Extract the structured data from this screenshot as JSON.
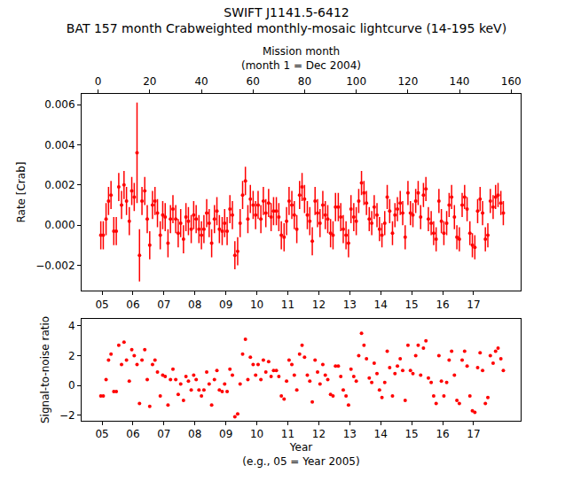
{
  "chart_data": [
    {
      "type": "scatter",
      "title": [
        "SWIFT J1141.5-6412",
        "BAT 157 month Crabweighted monthly-mosaic lightcurve (14-195 keV)"
      ],
      "x2label": [
        "Mission month",
        "(month 1 = Dec 2004)"
      ],
      "ylabel": [
        "Rate [Crab]"
      ],
      "color": "#ff0000",
      "marker": "circle",
      "x": [
        2004.96,
        2005.04,
        2005.13,
        2005.21,
        2005.29,
        2005.38,
        2005.46,
        2005.54,
        2005.63,
        2005.71,
        2005.79,
        2005.88,
        2005.96,
        2006.04,
        2006.13,
        2006.21,
        2006.29,
        2006.38,
        2006.46,
        2006.54,
        2006.63,
        2006.71,
        2006.79,
        2006.88,
        2006.96,
        2007.04,
        2007.13,
        2007.21,
        2007.29,
        2007.38,
        2007.46,
        2007.54,
        2007.63,
        2007.71,
        2007.79,
        2007.88,
        2007.96,
        2008.04,
        2008.13,
        2008.21,
        2008.29,
        2008.38,
        2008.46,
        2008.54,
        2008.63,
        2008.71,
        2008.79,
        2008.88,
        2008.96,
        2009.04,
        2009.13,
        2009.21,
        2009.29,
        2009.38,
        2009.46,
        2009.54,
        2009.63,
        2009.71,
        2009.79,
        2009.88,
        2009.96,
        2010.04,
        2010.13,
        2010.21,
        2010.29,
        2010.38,
        2010.46,
        2010.54,
        2010.63,
        2010.71,
        2010.79,
        2010.88,
        2010.96,
        2011.04,
        2011.13,
        2011.21,
        2011.29,
        2011.38,
        2011.46,
        2011.54,
        2011.63,
        2011.71,
        2011.79,
        2011.88,
        2011.96,
        2012.04,
        2012.13,
        2012.21,
        2012.29,
        2012.38,
        2012.46,
        2012.54,
        2012.63,
        2012.71,
        2012.79,
        2012.88,
        2012.96,
        2013.04,
        2013.13,
        2013.21,
        2013.29,
        2013.38,
        2013.46,
        2013.54,
        2013.63,
        2013.71,
        2013.79,
        2013.88,
        2013.96,
        2014.04,
        2014.13,
        2014.21,
        2014.29,
        2014.38,
        2014.46,
        2014.54,
        2014.63,
        2014.71,
        2014.79,
        2014.88,
        2014.96,
        2015.04,
        2015.13,
        2015.21,
        2015.29,
        2015.38,
        2015.46,
        2015.54,
        2015.63,
        2015.71,
        2015.79,
        2015.88,
        2015.96,
        2016.04,
        2016.13,
        2016.21,
        2016.29,
        2016.38,
        2016.46,
        2016.54,
        2016.63,
        2016.71,
        2016.79,
        2016.88,
        2016.96,
        2017.04,
        2017.13,
        2017.21,
        2017.29,
        2017.38,
        2017.46,
        2017.54,
        2017.63,
        2017.71,
        2017.79,
        2017.88,
        2017.96
      ],
      "values": [
        -0.0005,
        -0.0005,
        0.0003,
        0.0012,
        0.0015,
        -0.0003,
        -0.0003,
        0.0019,
        0.001,
        0.002,
        0.0012,
        0.0002,
        0.0017,
        0.0014,
        0.0036,
        -0.0015,
        0.0012,
        0.0017,
        0.0003,
        -0.001,
        0.001,
        0.0012,
        0.0006,
        -0.0005,
        0.0005,
        0.0004,
        -0.0009,
        0.0003,
        0.0008,
        0.0003,
        -0.0004,
        0.0001,
        -0.0007,
        0.0004,
        0.0002,
        -0.0002,
        0.0005,
        0.0003,
        -0.0002,
        -0.0005,
        -0.0002,
        0.0006,
        0.0001,
        -0.0009,
        0.0003,
        0.0007,
        -0.0002,
        -0.0003,
        0.0001,
        -0.0003,
        0.0008,
        0.0005,
        -0.0015,
        -0.0013,
        0.0001,
        0.0015,
        0.0022,
        0.0003,
        0.0013,
        0.001,
        0.0005,
        0.001,
        0.0003,
        0.0012,
        0.0006,
        0.0011,
        0.0004,
        0.0007,
        0.0007,
        0.0004,
        -0.0005,
        -0.0006,
        0.0002,
        0.0012,
        0.001,
        0.0005,
        -0.0002,
        0.0015,
        0.0019,
        0.0013,
        0.0005,
        0.0002,
        -0.0008,
        0.0012,
        0.0006,
        0.0001,
        0.001,
        0.0005,
        0.0003,
        -0.0004,
        -0.0005,
        0.0009,
        0.0009,
        0.0004,
        -0.0002,
        -0.0005,
        -0.0009,
        0.0008,
        0.0004,
        0.0002,
        0.0012,
        0.0021,
        0.0016,
        0.0011,
        0.0003,
        0.0001,
        0.0009,
        0.0005,
        -0.0002,
        -0.0005,
        0.0001,
        0.0014,
        0.0007,
        -0.0004,
        0.0005,
        0.0008,
        0.0011,
        0.0006,
        -0.0006,
        0.0016,
        0.0006,
        0.0005,
        0.0012,
        0.0016,
        0.0004,
        0.0015,
        0.0018,
        0.0003,
        0.0001,
        -0.0004,
        -0.0007,
        0.0012,
        0.0002,
        -0.0004,
        0.0001,
        0.001,
        0.0014,
        0.0004,
        -0.0006,
        -0.0007,
        0.001,
        0.0014,
        0.0008,
        -0.0004,
        -0.001,
        -0.0011,
        0.0007,
        0.0013,
        0.0006,
        -0.0007,
        -0.0005,
        0.0012,
        0.0009,
        0.0014,
        0.0015,
        0.0011,
        0.0006
      ],
      "error": [
        0.0007,
        0.0007,
        0.0008,
        0.0007,
        0.0007,
        0.0007,
        0.0007,
        0.0007,
        0.0007,
        0.0007,
        0.0007,
        0.0007,
        0.0007,
        0.0007,
        0.0025,
        0.0013,
        0.0007,
        0.0007,
        0.0007,
        0.0007,
        0.0007,
        0.0007,
        0.0007,
        0.0007,
        0.0007,
        0.0007,
        0.0007,
        0.0007,
        0.0007,
        0.0007,
        0.0007,
        0.0007,
        0.0007,
        0.0007,
        0.0007,
        0.0007,
        0.0007,
        0.0007,
        0.0007,
        0.0007,
        0.0007,
        0.0007,
        0.0007,
        0.0007,
        0.0007,
        0.0007,
        0.0007,
        0.0007,
        0.0007,
        0.0007,
        0.0007,
        0.0007,
        0.0007,
        0.0007,
        0.0007,
        0.0007,
        0.0007,
        0.0007,
        0.0007,
        0.0007,
        0.0007,
        0.0007,
        0.0007,
        0.0007,
        0.0007,
        0.0007,
        0.0007,
        0.0007,
        0.0007,
        0.0007,
        0.0007,
        0.0007,
        0.0007,
        0.0007,
        0.0007,
        0.0007,
        0.0007,
        0.0007,
        0.0007,
        0.0007,
        0.0007,
        0.0007,
        0.0007,
        0.0007,
        0.0007,
        0.0007,
        0.0007,
        0.0007,
        0.0007,
        0.0007,
        0.0007,
        0.0007,
        0.0007,
        0.0007,
        0.0007,
        0.0007,
        0.0007,
        0.0007,
        0.0007,
        0.0007,
        0.0006,
        0.0006,
        0.0006,
        0.0006,
        0.0006,
        0.0006,
        0.0006,
        0.0006,
        0.0006,
        0.0006,
        0.0006,
        0.0006,
        0.0006,
        0.0006,
        0.0006,
        0.0006,
        0.0006,
        0.0006,
        0.0006,
        0.0006,
        0.0006,
        0.0006,
        0.0006,
        0.0006,
        0.0006,
        0.0006,
        0.0006,
        0.0006,
        0.0006,
        0.0006,
        0.0006,
        0.0006,
        0.0006,
        0.0006,
        0.0006,
        0.0006,
        0.0006,
        0.0006,
        0.0006,
        0.0006,
        0.0006,
        0.0006,
        0.0006,
        0.0006,
        0.0006,
        0.0006,
        0.0006,
        0.0006,
        0.0006,
        0.0006,
        0.0006,
        0.0006,
        0.0006,
        0.0006,
        0.0006,
        0.0006,
        0.0006
      ],
      "xlim": [
        2004.34,
        2018.52
      ],
      "xticks": [
        {
          "value": 2005,
          "label": "05"
        },
        {
          "value": 2006,
          "label": "06"
        },
        {
          "value": 2007,
          "label": "07"
        },
        {
          "value": 2008,
          "label": "08"
        },
        {
          "value": 2009,
          "label": "09"
        },
        {
          "value": 2010,
          "label": "10"
        },
        {
          "value": 2011,
          "label": "11"
        },
        {
          "value": 2012,
          "label": "12"
        },
        {
          "value": 2013,
          "label": "13"
        },
        {
          "value": 2014,
          "label": "14"
        },
        {
          "value": 2015,
          "label": "15"
        },
        {
          "value": 2016,
          "label": "16"
        },
        {
          "value": 2017,
          "label": "17"
        }
      ],
      "x2lim": [
        -6.4,
        163.7
      ],
      "x2ticks": [
        0,
        20,
        40,
        60,
        80,
        100,
        120,
        140,
        160
      ],
      "ylim": [
        -0.00326,
        0.00653
      ],
      "yticks": [
        {
          "value": -0.002,
          "label": "−0.002"
        },
        {
          "value": 0,
          "label": "0.000"
        },
        {
          "value": 0.002,
          "label": "0.002"
        },
        {
          "value": 0.004,
          "label": "0.004"
        },
        {
          "value": 0.006,
          "label": "0.006"
        }
      ]
    },
    {
      "type": "scatter",
      "xlabel": [
        "Year",
        "(e.g., 05 = Year 2005)"
      ],
      "ylabel": [
        "Signal-to-noise ratio"
      ],
      "color": "#ff0000",
      "marker": "circle",
      "x": [
        2004.96,
        2005.04,
        2005.13,
        2005.21,
        2005.29,
        2005.38,
        2005.46,
        2005.54,
        2005.63,
        2005.71,
        2005.79,
        2005.88,
        2005.96,
        2006.04,
        2006.13,
        2006.21,
        2006.29,
        2006.38,
        2006.46,
        2006.54,
        2006.63,
        2006.71,
        2006.79,
        2006.88,
        2006.96,
        2007.04,
        2007.13,
        2007.21,
        2007.29,
        2007.38,
        2007.46,
        2007.54,
        2007.63,
        2007.71,
        2007.79,
        2007.88,
        2007.96,
        2008.04,
        2008.13,
        2008.21,
        2008.29,
        2008.38,
        2008.46,
        2008.54,
        2008.63,
        2008.71,
        2008.79,
        2008.88,
        2008.96,
        2009.04,
        2009.13,
        2009.21,
        2009.29,
        2009.38,
        2009.46,
        2009.54,
        2009.63,
        2009.71,
        2009.79,
        2009.88,
        2009.96,
        2010.04,
        2010.13,
        2010.21,
        2010.29,
        2010.38,
        2010.46,
        2010.54,
        2010.63,
        2010.71,
        2010.79,
        2010.88,
        2010.96,
        2011.04,
        2011.13,
        2011.21,
        2011.29,
        2011.38,
        2011.46,
        2011.54,
        2011.63,
        2011.71,
        2011.79,
        2011.88,
        2011.96,
        2012.04,
        2012.13,
        2012.21,
        2012.29,
        2012.38,
        2012.46,
        2012.54,
        2012.63,
        2012.71,
        2012.79,
        2012.88,
        2012.96,
        2013.04,
        2013.13,
        2013.21,
        2013.29,
        2013.38,
        2013.46,
        2013.54,
        2013.63,
        2013.71,
        2013.79,
        2013.88,
        2013.96,
        2014.04,
        2014.13,
        2014.21,
        2014.29,
        2014.38,
        2014.46,
        2014.54,
        2014.63,
        2014.71,
        2014.79,
        2014.88,
        2014.96,
        2015.04,
        2015.13,
        2015.21,
        2015.29,
        2015.38,
        2015.46,
        2015.54,
        2015.63,
        2015.71,
        2015.79,
        2015.88,
        2015.96,
        2016.04,
        2016.13,
        2016.21,
        2016.29,
        2016.38,
        2016.46,
        2016.54,
        2016.63,
        2016.71,
        2016.79,
        2016.88,
        2016.96,
        2017.04,
        2017.13,
        2017.21,
        2017.29,
        2017.38,
        2017.46,
        2017.54,
        2017.63,
        2017.71,
        2017.79,
        2017.88,
        2017.96
      ],
      "values": [
        -0.7,
        -0.7,
        0.4,
        1.7,
        2.1,
        -0.4,
        -0.4,
        2.7,
        1.4,
        2.9,
        1.7,
        0.3,
        2.4,
        2.0,
        1.4,
        -1.2,
        1.7,
        2.4,
        0.4,
        -1.4,
        1.4,
        1.7,
        0.9,
        -0.7,
        0.7,
        0.6,
        -1.3,
        0.4,
        1.1,
        0.4,
        -0.6,
        0.1,
        -1.0,
        0.6,
        0.3,
        -0.3,
        0.7,
        0.4,
        -0.3,
        -0.7,
        -0.3,
        0.9,
        0.1,
        -1.3,
        0.4,
        1.0,
        -0.3,
        -0.4,
        0.1,
        -0.4,
        1.1,
        0.7,
        -2.1,
        -1.9,
        0.1,
        2.1,
        3.1,
        0.4,
        1.9,
        1.4,
        0.7,
        1.4,
        0.4,
        1.7,
        0.9,
        1.6,
        0.6,
        1.0,
        1.0,
        0.6,
        -0.7,
        -0.9,
        0.3,
        1.7,
        1.4,
        0.7,
        -0.3,
        2.1,
        2.7,
        1.9,
        0.7,
        0.3,
        -1.1,
        1.7,
        0.9,
        0.1,
        1.4,
        0.7,
        0.4,
        -0.6,
        -0.7,
        1.3,
        1.3,
        0.6,
        -0.3,
        -0.7,
        -1.3,
        1.1,
        0.6,
        0.3,
        2.0,
        3.5,
        2.7,
        1.8,
        0.5,
        0.2,
        1.5,
        0.8,
        -0.3,
        -0.8,
        0.2,
        2.3,
        1.2,
        -0.7,
        0.8,
        1.3,
        1.8,
        1.0,
        -1.0,
        2.7,
        1.0,
        0.8,
        2.0,
        2.7,
        0.7,
        2.5,
        3.0,
        0.5,
        0.2,
        -0.7,
        -1.2,
        2.0,
        0.3,
        -0.7,
        0.2,
        1.7,
        2.3,
        0.7,
        -1.0,
        -1.2,
        1.7,
        2.3,
        1.3,
        -0.7,
        -1.7,
        -1.8,
        1.2,
        2.2,
        1.0,
        -1.2,
        -0.8,
        2.0,
        1.5,
        2.3,
        2.5,
        1.8,
        1.0
      ],
      "xlim": [
        2004.34,
        2018.52
      ],
      "xticks": [
        {
          "value": 2005,
          "label": "05"
        },
        {
          "value": 2006,
          "label": "06"
        },
        {
          "value": 2007,
          "label": "07"
        },
        {
          "value": 2008,
          "label": "08"
        },
        {
          "value": 2009,
          "label": "09"
        },
        {
          "value": 2010,
          "label": "10"
        },
        {
          "value": 2011,
          "label": "11"
        },
        {
          "value": 2012,
          "label": "12"
        },
        {
          "value": 2013,
          "label": "13"
        },
        {
          "value": 2014,
          "label": "14"
        },
        {
          "value": 2015,
          "label": "15"
        },
        {
          "value": 2016,
          "label": "16"
        },
        {
          "value": 2017,
          "label": "17"
        }
      ],
      "ylim": [
        -2.36,
        4.47
      ],
      "yticks": [
        {
          "value": -2,
          "label": "−2"
        },
        0,
        2,
        4
      ]
    }
  ]
}
